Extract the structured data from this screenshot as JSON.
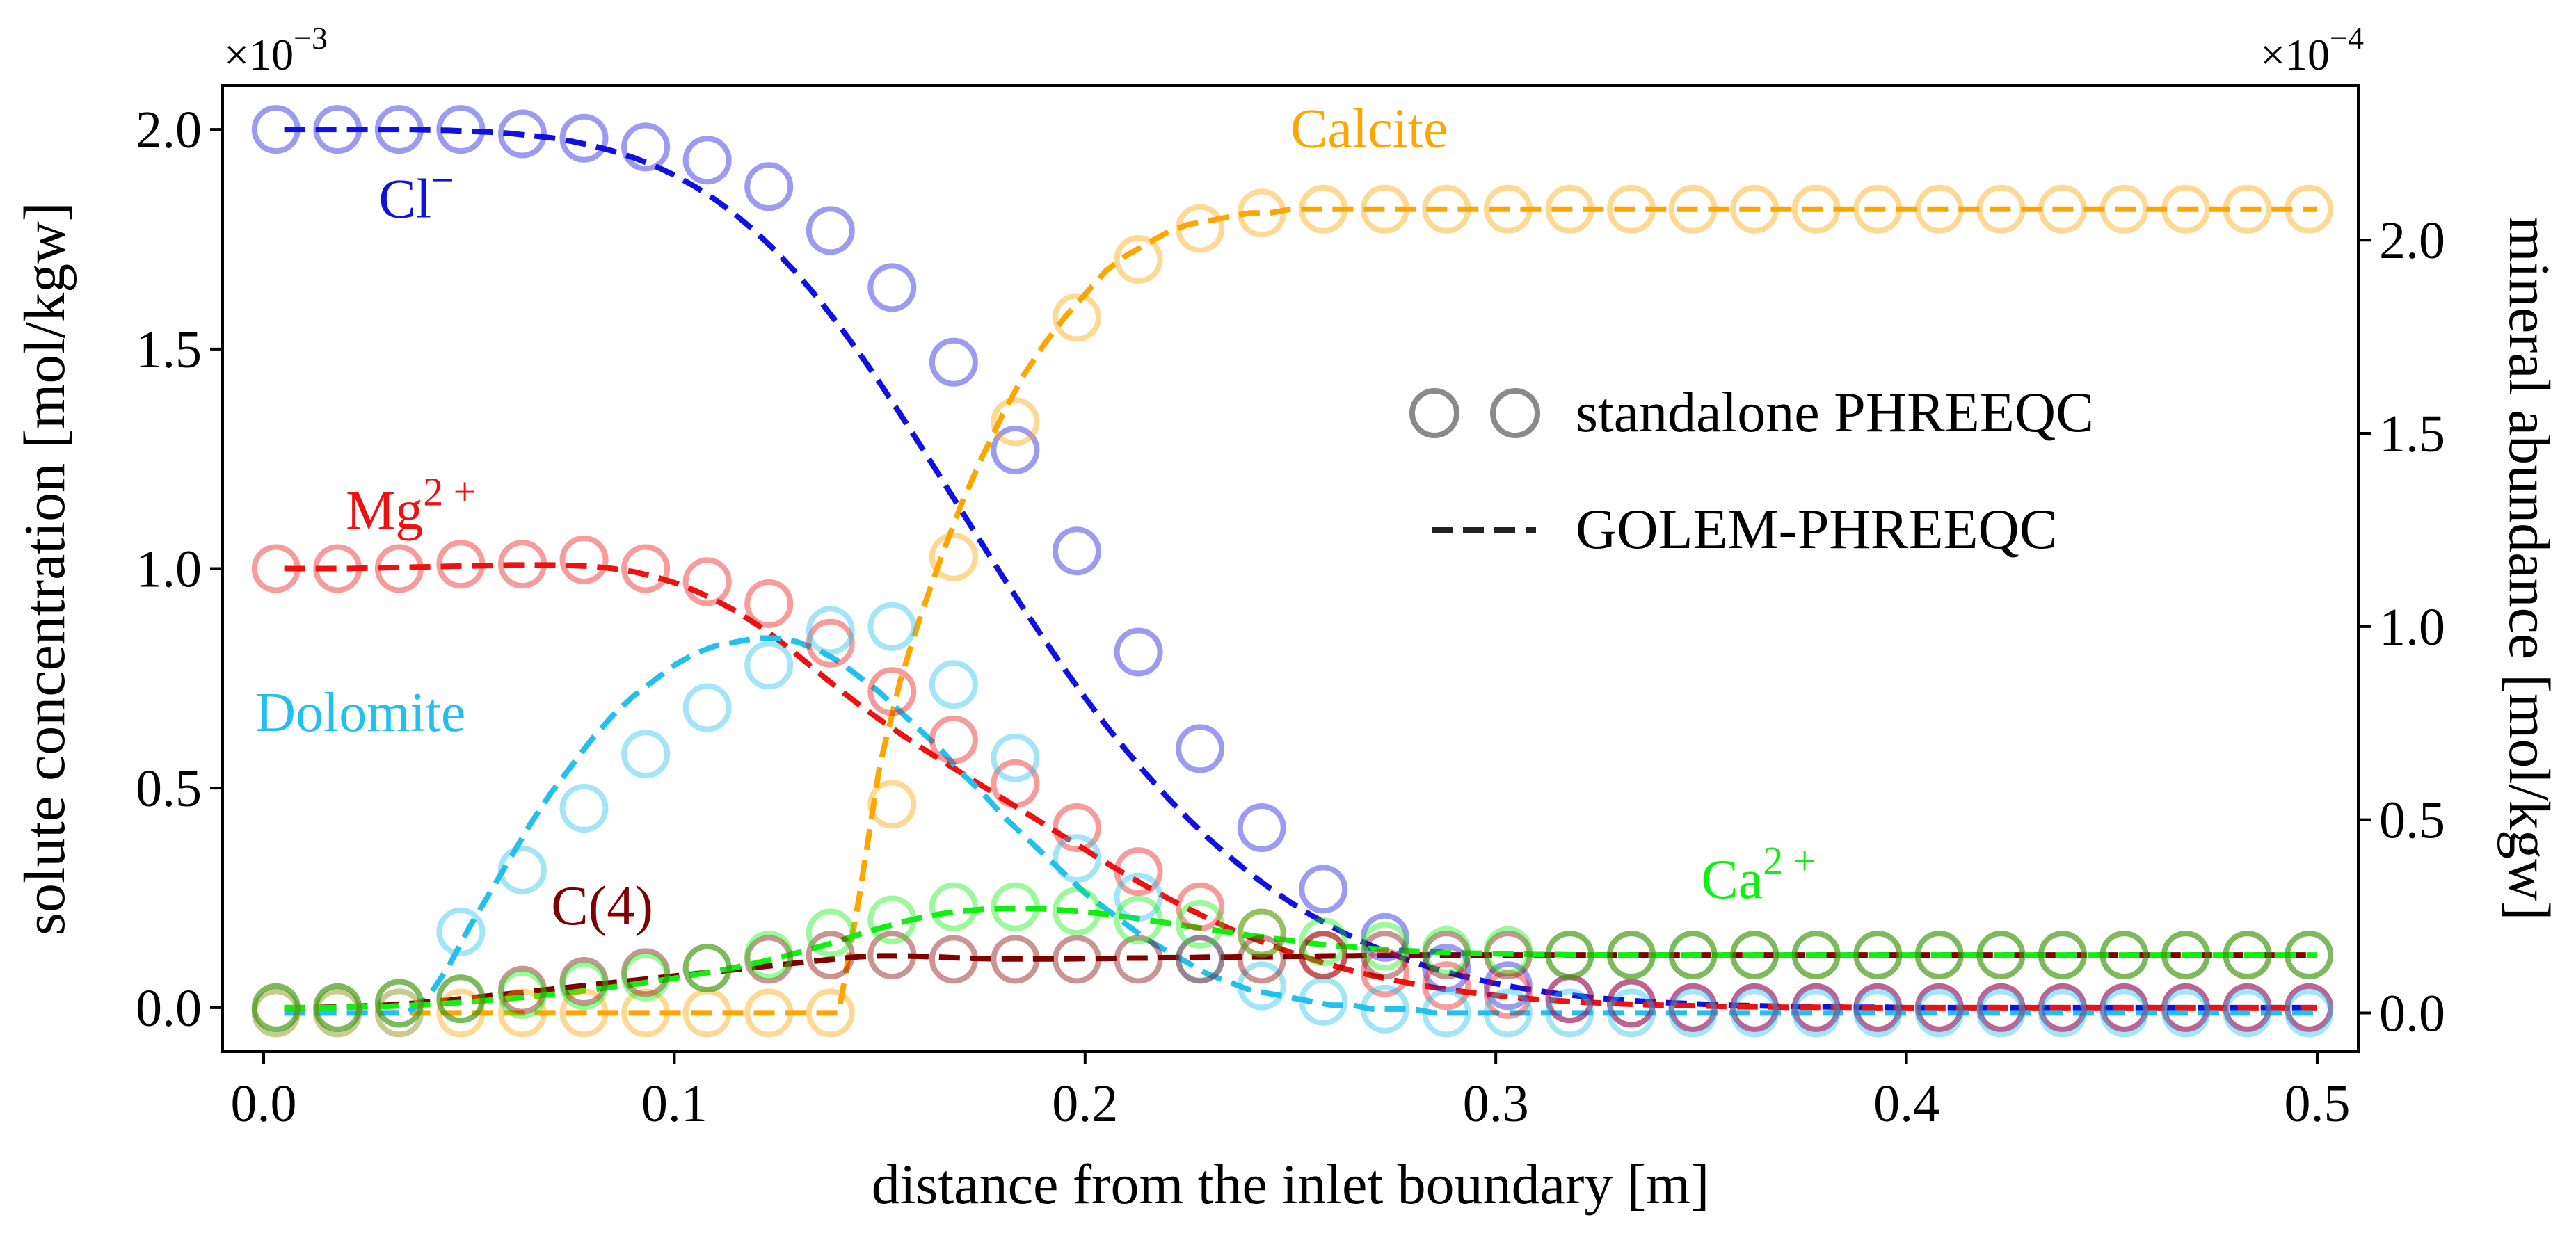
{
  "chart_data": {
    "type": "line",
    "xlabel": "distance from the inlet boundary [m]",
    "ylabel_left": "solute concentration [mol/kgw]",
    "ylabel_right": "mineral abundance [mol/kgw]",
    "left_multiplier": "×10",
    "left_multiplier_exp": "−3",
    "right_multiplier": "×10",
    "right_multiplier_exp": "−4",
    "xlim": [
      -0.01,
      0.51
    ],
    "ylim_left": [
      -0.1,
      2.1
    ],
    "ylim_right": [
      -0.1,
      2.4
    ],
    "xticks": [
      0.0,
      0.1,
      0.2,
      0.3,
      0.4,
      0.5
    ],
    "xtick_labels": [
      "0.0",
      "0.1",
      "0.2",
      "0.3",
      "0.4",
      "0.5"
    ],
    "yticks_left": [
      0.0,
      0.5,
      1.0,
      1.5,
      2.0
    ],
    "ytick_labels_left": [
      "0.0",
      "0.5",
      "1.0",
      "1.5",
      "2.0"
    ],
    "yticks_right": [
      0.0,
      0.5,
      1.0,
      1.5,
      2.0
    ],
    "ytick_labels_right": [
      "0.0",
      "0.5",
      "1.0",
      "1.5",
      "2.0"
    ],
    "marker_x": [
      0.003,
      0.018,
      0.033,
      0.048,
      0.063,
      0.078,
      0.093,
      0.108,
      0.123,
      0.138,
      0.153,
      0.168,
      0.183,
      0.198,
      0.213,
      0.228,
      0.243,
      0.258,
      0.273,
      0.288,
      0.303,
      0.318,
      0.333,
      0.348,
      0.363,
      0.378,
      0.393,
      0.408,
      0.423,
      0.438,
      0.453,
      0.468,
      0.483,
      0.498
    ],
    "line_x": [
      0.005,
      0.01,
      0.015,
      0.02,
      0.025,
      0.03,
      0.035,
      0.04,
      0.045,
      0.05,
      0.055,
      0.06,
      0.065,
      0.07,
      0.075,
      0.08,
      0.085,
      0.09,
      0.095,
      0.1,
      0.105,
      0.11,
      0.115,
      0.12,
      0.125,
      0.13,
      0.135,
      0.14,
      0.145,
      0.15,
      0.155,
      0.16,
      0.165,
      0.17,
      0.175,
      0.18,
      0.185,
      0.19,
      0.195,
      0.2,
      0.205,
      0.21,
      0.215,
      0.22,
      0.225,
      0.23,
      0.235,
      0.24,
      0.245,
      0.25,
      0.255,
      0.26,
      0.265,
      0.27,
      0.275,
      0.28,
      0.285,
      0.29,
      0.295,
      0.3,
      0.305,
      0.31,
      0.315,
      0.32,
      0.325,
      0.33,
      0.335,
      0.34,
      0.345,
      0.35,
      0.355,
      0.36,
      0.365,
      0.37,
      0.375,
      0.38,
      0.385,
      0.39,
      0.395,
      0.4,
      0.405,
      0.41,
      0.415,
      0.42,
      0.425,
      0.43,
      0.435,
      0.44,
      0.445,
      0.45,
      0.455,
      0.46,
      0.465,
      0.47,
      0.475,
      0.48,
      0.485,
      0.49,
      0.495,
      0.5
    ],
    "series": [
      {
        "name": "Cl",
        "label_sup": "−",
        "axis": "left",
        "color": "#1010e0",
        "marker_values": [
          2.0,
          2.0,
          2.0,
          2.0,
          1.99,
          1.98,
          1.96,
          1.93,
          1.87,
          1.77,
          1.64,
          1.47,
          1.27,
          1.04,
          0.81,
          0.59,
          0.41,
          0.27,
          0.16,
          0.09,
          0.05,
          0.02,
          0.01,
          0.0,
          0.0,
          0.0,
          0.0,
          0.0,
          0.0,
          0.0,
          0.0,
          0.0,
          0.0,
          0.0
        ],
        "line_values": [
          2.0,
          2.0,
          2.0,
          2.0,
          2.0,
          2.0,
          2.0,
          1.999,
          1.998,
          1.996,
          1.994,
          1.991,
          1.986,
          1.981,
          1.973,
          1.963,
          1.951,
          1.936,
          1.918,
          1.896,
          1.87,
          1.84,
          1.805,
          1.765,
          1.72,
          1.67,
          1.615,
          1.555,
          1.491,
          1.423,
          1.352,
          1.279,
          1.205,
          1.13,
          1.055,
          0.981,
          0.909,
          0.839,
          0.771,
          0.706,
          0.644,
          0.586,
          0.531,
          0.479,
          0.431,
          0.386,
          0.345,
          0.307,
          0.272,
          0.24,
          0.211,
          0.185,
          0.161,
          0.14,
          0.121,
          0.104,
          0.089,
          0.076,
          0.065,
          0.055,
          0.046,
          0.039,
          0.032,
          0.027,
          0.022,
          0.018,
          0.015,
          0.012,
          0.01,
          0.008,
          0.006,
          0.005,
          0.004,
          0.003,
          0.002,
          0.002,
          0.001,
          0.001,
          0.001,
          0.0,
          0.0,
          0.0,
          0.0,
          0.0,
          0.0,
          0.0,
          0.0,
          0.0,
          0.0,
          0.0,
          0.0,
          0.0,
          0.0,
          0.0,
          0.0,
          0.0,
          0.0,
          0.0,
          0.0,
          0.0
        ]
      },
      {
        "name": "Mg",
        "label_sup": "2 +",
        "axis": "left",
        "color": "#ee1111",
        "marker_values": [
          1.0,
          1.0,
          1.0,
          1.01,
          1.01,
          1.02,
          1.0,
          0.97,
          0.92,
          0.83,
          0.72,
          0.61,
          0.51,
          0.41,
          0.31,
          0.23,
          0.17,
          0.12,
          0.08,
          0.05,
          0.03,
          0.02,
          0.01,
          0.0,
          0.0,
          0.0,
          0.0,
          0.0,
          0.0,
          0.0,
          0.0,
          0.0,
          0.0,
          0.0
        ],
        "line_values": [
          1.0,
          1.0,
          1.0,
          1.0,
          1.001,
          1.002,
          1.003,
          1.004,
          1.005,
          1.006,
          1.007,
          1.008,
          1.008,
          1.008,
          1.007,
          1.005,
          1.0,
          0.993,
          0.982,
          0.968,
          0.95,
          0.928,
          0.903,
          0.873,
          0.84,
          0.803,
          0.764,
          0.726,
          0.69,
          0.656,
          0.624,
          0.593,
          0.563,
          0.534,
          0.505,
          0.476,
          0.447,
          0.418,
          0.389,
          0.36,
          0.331,
          0.303,
          0.276,
          0.25,
          0.226,
          0.203,
          0.181,
          0.161,
          0.143,
          0.126,
          0.111,
          0.097,
          0.084,
          0.073,
          0.063,
          0.054,
          0.046,
          0.039,
          0.033,
          0.028,
          0.023,
          0.019,
          0.016,
          0.013,
          0.011,
          0.009,
          0.007,
          0.006,
          0.005,
          0.004,
          0.003,
          0.002,
          0.002,
          0.001,
          0.001,
          0.001,
          0.001,
          0.0,
          0.0,
          0.0,
          0.0,
          0.0,
          0.0,
          0.0,
          0.0,
          0.0,
          0.0,
          0.0,
          0.0,
          0.0,
          0.0,
          0.0,
          0.0,
          0.0,
          0.0,
          0.0,
          0.0,
          0.0,
          0.0,
          0.0
        ]
      },
      {
        "name": "C(4)",
        "label_sup": "",
        "axis": "left",
        "color": "#800000",
        "marker_values": [
          0.0,
          0.0,
          0.01,
          0.02,
          0.04,
          0.06,
          0.08,
          0.09,
          0.11,
          0.12,
          0.12,
          0.11,
          0.11,
          0.11,
          0.11,
          0.11,
          0.11,
          0.12,
          0.12,
          0.12,
          0.12,
          0.12,
          0.12,
          0.12,
          0.12,
          0.12,
          0.12,
          0.12,
          0.12,
          0.12,
          0.12,
          0.12,
          0.12,
          0.12
        ],
        "line_values": [
          0.0,
          0.0,
          0.001,
          0.002,
          0.004,
          0.006,
          0.009,
          0.013,
          0.017,
          0.022,
          0.027,
          0.032,
          0.037,
          0.042,
          0.047,
          0.052,
          0.057,
          0.062,
          0.067,
          0.072,
          0.077,
          0.082,
          0.087,
          0.092,
          0.097,
          0.102,
          0.107,
          0.112,
          0.116,
          0.118,
          0.118,
          0.117,
          0.115,
          0.113,
          0.112,
          0.111,
          0.111,
          0.111,
          0.111,
          0.112,
          0.112,
          0.113,
          0.113,
          0.114,
          0.114,
          0.115,
          0.115,
          0.116,
          0.116,
          0.117,
          0.117,
          0.118,
          0.118,
          0.119,
          0.119,
          0.12,
          0.12,
          0.12,
          0.12,
          0.12,
          0.12,
          0.12,
          0.12,
          0.12,
          0.12,
          0.12,
          0.12,
          0.12,
          0.12,
          0.12,
          0.12,
          0.12,
          0.12,
          0.12,
          0.12,
          0.12,
          0.12,
          0.12,
          0.12,
          0.12,
          0.12,
          0.12,
          0.12,
          0.12,
          0.12,
          0.12,
          0.12,
          0.12,
          0.12,
          0.12,
          0.12,
          0.12,
          0.12,
          0.12,
          0.12,
          0.12,
          0.12,
          0.12,
          0.12,
          0.12
        ]
      },
      {
        "name": "Ca",
        "label_sup": "2 +",
        "axis": "left",
        "color": "#11ee11",
        "marker_values": [
          0.0,
          0.0,
          0.01,
          0.02,
          0.03,
          0.05,
          0.07,
          0.09,
          0.12,
          0.17,
          0.2,
          0.23,
          0.23,
          0.22,
          0.2,
          0.19,
          0.17,
          0.15,
          0.14,
          0.13,
          0.13,
          0.12,
          0.12,
          0.12,
          0.12,
          0.12,
          0.12,
          0.12,
          0.12,
          0.12,
          0.12,
          0.12,
          0.12,
          0.12
        ],
        "line_values": [
          0.0,
          0.0,
          0.0,
          0.001,
          0.002,
          0.003,
          0.005,
          0.007,
          0.01,
          0.013,
          0.017,
          0.021,
          0.025,
          0.03,
          0.035,
          0.041,
          0.047,
          0.053,
          0.06,
          0.067,
          0.075,
          0.083,
          0.092,
          0.102,
          0.113,
          0.125,
          0.138,
          0.152,
          0.167,
          0.181,
          0.194,
          0.205,
          0.214,
          0.22,
          0.224,
          0.226,
          0.226,
          0.225,
          0.222,
          0.218,
          0.213,
          0.207,
          0.2,
          0.193,
          0.186,
          0.179,
          0.172,
          0.165,
          0.159,
          0.153,
          0.147,
          0.142,
          0.138,
          0.134,
          0.131,
          0.129,
          0.127,
          0.125,
          0.124,
          0.123,
          0.122,
          0.121,
          0.121,
          0.12,
          0.12,
          0.12,
          0.12,
          0.12,
          0.12,
          0.12,
          0.12,
          0.12,
          0.12,
          0.12,
          0.12,
          0.12,
          0.12,
          0.12,
          0.12,
          0.12,
          0.12,
          0.12,
          0.12,
          0.12,
          0.12,
          0.12,
          0.12,
          0.12,
          0.12,
          0.12,
          0.12,
          0.12,
          0.12,
          0.12,
          0.12,
          0.12,
          0.12,
          0.12,
          0.12,
          0.12
        ]
      },
      {
        "name": "Dolomite",
        "label_sup": "",
        "axis": "right",
        "color": "#22c0ee",
        "marker_values": [
          0.0,
          0.0,
          0.0,
          0.21,
          0.37,
          0.53,
          0.67,
          0.79,
          0.9,
          0.99,
          1.0,
          0.85,
          0.66,
          0.4,
          0.3,
          0.14,
          0.07,
          0.03,
          0.01,
          0.0,
          0.0,
          0.0,
          0.0,
          0.0,
          0.0,
          0.0,
          0.0,
          0.0,
          0.0,
          0.0,
          0.0,
          0.0,
          0.0,
          0.0
        ],
        "line_values": [
          0.0,
          0.0,
          0.0,
          0.0,
          0.0,
          0.0,
          0.0,
          0.04,
          0.12,
          0.22,
          0.31,
          0.4,
          0.49,
          0.57,
          0.64,
          0.71,
          0.77,
          0.82,
          0.86,
          0.9,
          0.93,
          0.95,
          0.96,
          0.97,
          0.97,
          0.96,
          0.94,
          0.91,
          0.87,
          0.83,
          0.78,
          0.73,
          0.68,
          0.62,
          0.57,
          0.51,
          0.46,
          0.41,
          0.36,
          0.31,
          0.27,
          0.23,
          0.19,
          0.16,
          0.13,
          0.1,
          0.08,
          0.06,
          0.05,
          0.04,
          0.03,
          0.02,
          0.02,
          0.01,
          0.01,
          0.01,
          0.0,
          0.0,
          0.0,
          0.0,
          0.0,
          0.0,
          0.0,
          0.0,
          0.0,
          0.0,
          0.0,
          0.0,
          0.0,
          0.0,
          0.0,
          0.0,
          0.0,
          0.0,
          0.0,
          0.0,
          0.0,
          0.0,
          0.0,
          0.0,
          0.0,
          0.0,
          0.0,
          0.0,
          0.0,
          0.0,
          0.0,
          0.0,
          0.0,
          0.0,
          0.0,
          0.0,
          0.0,
          0.0,
          0.0,
          0.0,
          0.0,
          0.0,
          0.0,
          0.0
        ]
      },
      {
        "name": "Calcite",
        "label_sup": "",
        "axis": "right",
        "color": "#ffa500",
        "marker_values": [
          0.0,
          0.0,
          0.0,
          0.0,
          0.0,
          0.0,
          0.0,
          0.0,
          0.0,
          0.0,
          0.54,
          1.18,
          1.53,
          1.8,
          1.95,
          2.03,
          2.07,
          2.08,
          2.08,
          2.08,
          2.08,
          2.08,
          2.08,
          2.08,
          2.08,
          2.08,
          2.08,
          2.08,
          2.08,
          2.08,
          2.08,
          2.08,
          2.08,
          2.08
        ],
        "line_values": [
          0.0,
          0.0,
          0.0,
          0.0,
          0.0,
          0.0,
          0.0,
          0.0,
          0.0,
          0.0,
          0.0,
          0.0,
          0.0,
          0.0,
          0.0,
          0.0,
          0.0,
          0.0,
          0.0,
          0.0,
          0.0,
          0.0,
          0.0,
          0.0,
          0.0,
          0.0,
          0.0,
          0.0,
          0.3,
          0.64,
          0.86,
          1.03,
          1.18,
          1.32,
          1.44,
          1.55,
          1.65,
          1.73,
          1.8,
          1.86,
          1.92,
          1.96,
          1.99,
          2.02,
          2.04,
          2.05,
          2.06,
          2.07,
          2.07,
          2.08,
          2.08,
          2.08,
          2.08,
          2.08,
          2.08,
          2.08,
          2.08,
          2.08,
          2.08,
          2.08,
          2.08,
          2.08,
          2.08,
          2.08,
          2.08,
          2.08,
          2.08,
          2.08,
          2.08,
          2.08,
          2.08,
          2.08,
          2.08,
          2.08,
          2.08,
          2.08,
          2.08,
          2.08,
          2.08,
          2.08,
          2.08,
          2.08,
          2.08,
          2.08,
          2.08,
          2.08,
          2.08,
          2.08,
          2.08,
          2.08,
          2.08,
          2.08,
          2.08,
          2.08,
          2.08,
          2.08,
          2.08,
          2.08,
          2.08,
          2.08
        ]
      }
    ],
    "series_labels": [
      {
        "series": "Cl",
        "x": 0.028,
        "y_left": 1.8
      },
      {
        "series": "Mg",
        "x": 0.02,
        "y_left": 1.09
      },
      {
        "series": "Dolomite",
        "x": -0.002,
        "y_left": 0.63
      },
      {
        "series": "C(4)",
        "x": 0.07,
        "y_left": 0.19
      },
      {
        "series": "Ca",
        "x": 0.35,
        "y_left": 0.25
      },
      {
        "series": "Calcite",
        "x": 0.25,
        "y_left": 1.96
      }
    ],
    "legend": {
      "placement": "center-right",
      "entries": [
        {
          "label": "standalone PHREEQC",
          "style": "open-circles",
          "color": "#8a8a8a"
        },
        {
          "label": "GOLEM-PHREEQC",
          "style": "dashed-line",
          "color": "#222222"
        }
      ]
    }
  }
}
